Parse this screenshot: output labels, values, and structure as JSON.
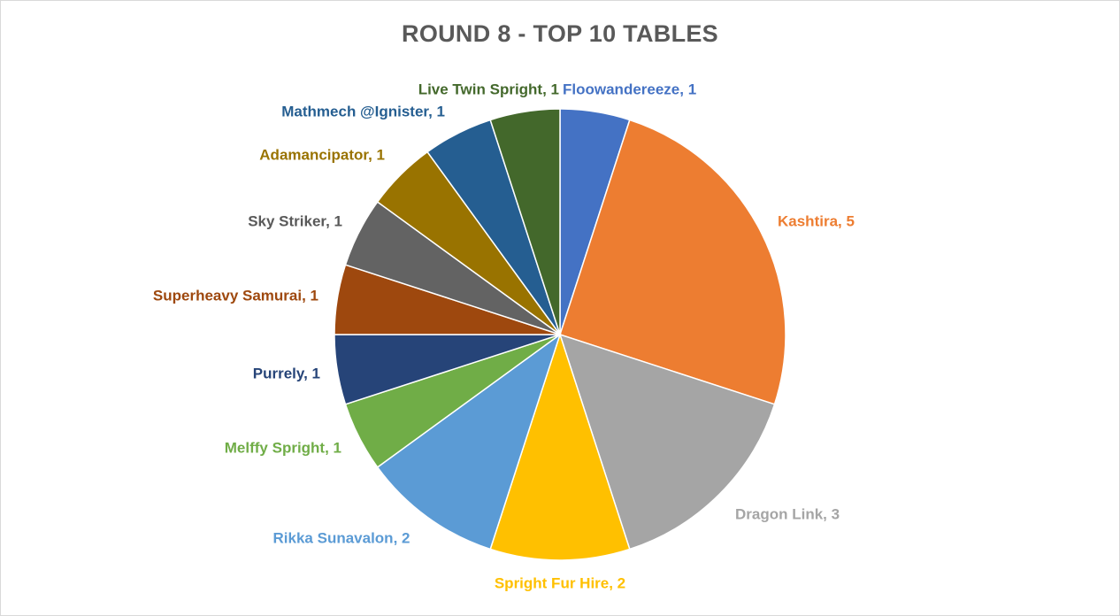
{
  "chart_data": {
    "type": "pie",
    "title": "ROUND 8 - TOP 10 TABLES",
    "slices": [
      {
        "label": "Floowandereeze",
        "value": 1,
        "display": "Floowandereeze, 1",
        "color": "#4472C4"
      },
      {
        "label": "Kashtira",
        "value": 5,
        "display": "Kashtira, 5",
        "color": "#ED7D31"
      },
      {
        "label": "Dragon Link",
        "value": 3,
        "display": "Dragon Link, 3",
        "color": "#A5A5A5"
      },
      {
        "label": "Spright Fur Hire",
        "value": 2,
        "display": "Spright Fur Hire, 2",
        "color": "#FFC000"
      },
      {
        "label": "Rikka Sunavalon",
        "value": 2,
        "display": "Rikka Sunavalon, 2",
        "color": "#5B9BD5"
      },
      {
        "label": "Melffy Spright",
        "value": 1,
        "display": "Melffy Spright, 1",
        "color": "#70AD47"
      },
      {
        "label": "Purrely",
        "value": 1,
        "display": "Purrely, 1",
        "color": "#264478"
      },
      {
        "label": "Superheavy Samurai",
        "value": 1,
        "display": "Superheavy Samurai, 1",
        "color": "#9E480E"
      },
      {
        "label": "Sky Striker",
        "value": 1,
        "display": "Sky Striker, 1",
        "color": "#636363"
      },
      {
        "label": "Adamancipator",
        "value": 1,
        "display": "Adamancipator, 1",
        "color": "#997300"
      },
      {
        "label": "Mathmech @Ignister",
        "value": 1,
        "display": "Mathmech @Ignister, 1",
        "color": "#255E91"
      },
      {
        "label": "Live Twin Spright",
        "value": 1,
        "display": "Live Twin Spright, 1",
        "color": "#43682B"
      }
    ],
    "label_colors": [
      "#4472C4",
      "#ED7D31",
      "#A5A5A5",
      "#FFC000",
      "#5B9BD5",
      "#70AD47",
      "#264478",
      "#9E480E",
      "#595959",
      "#997300",
      "#255E91",
      "#43682B"
    ]
  }
}
